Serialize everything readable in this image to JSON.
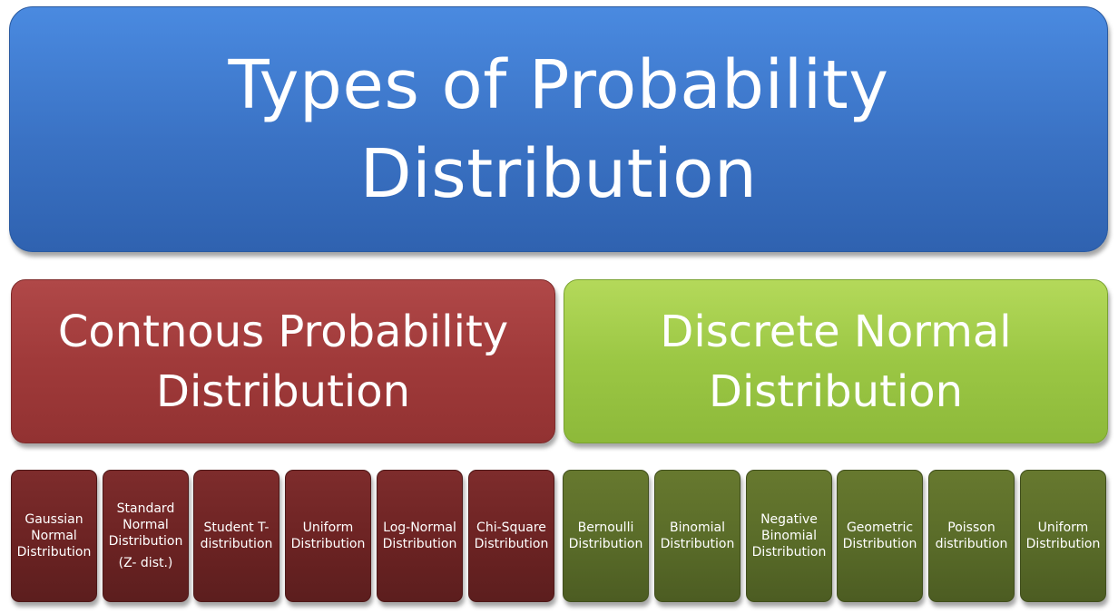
{
  "title": {
    "line1": "Types of Probability",
    "line2": "Distribution"
  },
  "categories": {
    "continuous": {
      "line1": "Contnous Probability",
      "line2": "Distribution"
    },
    "discrete": {
      "line1": "Discrete Normal",
      "line2": "Distribution"
    }
  },
  "continuous_items": [
    {
      "lines": [
        "Gaussian",
        "Normal",
        "Distribution"
      ]
    },
    {
      "lines": [
        "Standard",
        "Normal",
        "Distribution"
      ],
      "sub": "(Z- dist.)"
    },
    {
      "lines": [
        "Student T-",
        "distribution"
      ]
    },
    {
      "lines": [
        "Uniform",
        "Distribution"
      ]
    },
    {
      "lines": [
        "Log-Normal",
        "Distribution"
      ]
    },
    {
      "lines": [
        "Chi-Square",
        "Distribution"
      ]
    }
  ],
  "discrete_items": [
    {
      "lines": [
        "Bernoulli",
        "Distribution"
      ]
    },
    {
      "lines": [
        "Binomial",
        "Distribution"
      ]
    },
    {
      "lines": [
        "Negative",
        "Binomial",
        "Distribution"
      ]
    },
    {
      "lines": [
        "Geometric",
        "Distribution"
      ]
    },
    {
      "lines": [
        "Poisson",
        "distribution"
      ]
    },
    {
      "lines": [
        "Uniform",
        "Distribution"
      ]
    }
  ],
  "colors": {
    "title": "#3a72c4",
    "continuous": "#a03a3a",
    "discrete": "#9bc744",
    "continuous_leaf": "#6a2222",
    "discrete_leaf": "#586a28"
  }
}
